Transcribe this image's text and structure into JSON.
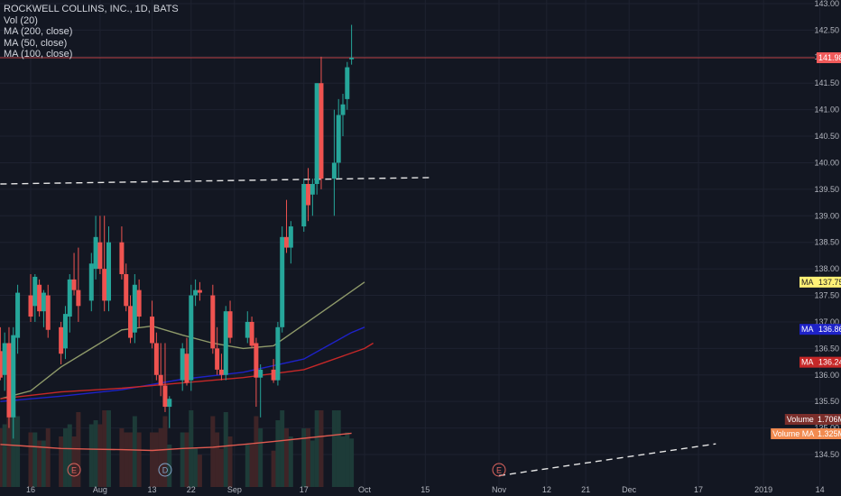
{
  "legend": {
    "symbol": "ROCKWELL COLLINS, INC., 1D, BATS",
    "vol": "Vol (20)",
    "ma200": "MA (200, close)",
    "ma50": "MA (50, close)",
    "ma100": "MA (100, close)"
  },
  "colors": {
    "background": "#131722",
    "grid": "#1e2230",
    "up": "#26a69a",
    "down": "#ef5350",
    "ma200": "#c62828",
    "ma50": "#1e22c8",
    "ma100": "#8f9a6a",
    "volume_ma": "#e05a50",
    "price_line": "#e64a4a"
  },
  "chart_data": {
    "type": "candlestick",
    "title": "ROCKWELL COLLINS, INC., 1D, BATS",
    "ylim": [
      134.1,
      143.0
    ],
    "y_ticks": [
      "134.50",
      "135.00",
      "135.50",
      "136.00",
      "136.50",
      "137.00",
      "137.50",
      "138.00",
      "138.50",
      "139.00",
      "139.50",
      "140.00",
      "140.50",
      "141.00",
      "141.50",
      "142.00",
      "142.50",
      "143.00"
    ],
    "x_ticks": [
      "16",
      "Aug",
      "13",
      "22",
      "Sep",
      "17",
      "Oct",
      "15",
      "Nov",
      "12",
      "21",
      "Dec",
      "17",
      "2019",
      "14"
    ],
    "x_tick_dates": [
      "2018-07-16",
      "2018-08-01",
      "2018-08-13",
      "2018-08-22",
      "2018-09-01",
      "2018-09-17",
      "2018-10-01",
      "2018-10-15",
      "2018-11-01",
      "2018-11-12",
      "2018-11-21",
      "2018-12-01",
      "2018-12-17",
      "2019-01-01",
      "2019-01-14"
    ],
    "candles": [
      {
        "date": "2018-07-09",
        "o": 136.45,
        "h": 136.9,
        "l": 135.9,
        "c": 135.95
      },
      {
        "date": "2018-07-10",
        "o": 136.0,
        "h": 136.8,
        "l": 135.7,
        "c": 136.6
      },
      {
        "date": "2018-07-11",
        "o": 136.6,
        "h": 136.9,
        "l": 135.0,
        "c": 135.2
      },
      {
        "date": "2018-07-12",
        "o": 135.2,
        "h": 136.9,
        "l": 134.8,
        "c": 136.75
      },
      {
        "date": "2018-07-13",
        "o": 136.7,
        "h": 137.7,
        "l": 136.4,
        "c": 137.55
      },
      {
        "date": "2018-07-16",
        "o": 137.5,
        "h": 137.9,
        "l": 137.0,
        "c": 137.1
      },
      {
        "date": "2018-07-17",
        "o": 137.3,
        "h": 137.9,
        "l": 137.0,
        "c": 137.85
      },
      {
        "date": "2018-07-18",
        "o": 137.7,
        "h": 137.8,
        "l": 137.1,
        "c": 137.2
      },
      {
        "date": "2018-07-19",
        "o": 137.2,
        "h": 137.6,
        "l": 136.9,
        "c": 137.55
      },
      {
        "date": "2018-07-20",
        "o": 137.5,
        "h": 137.7,
        "l": 136.7,
        "c": 136.85
      },
      {
        "date": "2018-07-23",
        "o": 136.9,
        "h": 137.0,
        "l": 136.2,
        "c": 136.4
      },
      {
        "date": "2018-07-24",
        "o": 136.5,
        "h": 137.3,
        "l": 136.3,
        "c": 137.15
      },
      {
        "date": "2018-07-25",
        "o": 137.1,
        "h": 137.9,
        "l": 136.8,
        "c": 137.8
      },
      {
        "date": "2018-07-26",
        "o": 137.8,
        "h": 138.3,
        "l": 137.5,
        "c": 137.6
      },
      {
        "date": "2018-07-27",
        "o": 137.6,
        "h": 138.4,
        "l": 137.0,
        "c": 137.3
      },
      {
        "date": "2018-07-30",
        "o": 137.4,
        "h": 138.3,
        "l": 137.2,
        "c": 138.1
      },
      {
        "date": "2018-07-31",
        "o": 138.0,
        "h": 139.0,
        "l": 137.8,
        "c": 138.6
      },
      {
        "date": "2018-08-01",
        "o": 138.5,
        "h": 139.0,
        "l": 137.9,
        "c": 138.0
      },
      {
        "date": "2018-08-02",
        "o": 138.0,
        "h": 139.0,
        "l": 137.2,
        "c": 137.4
      },
      {
        "date": "2018-08-03",
        "o": 137.4,
        "h": 138.8,
        "l": 137.2,
        "c": 138.5
      },
      {
        "date": "2018-08-06",
        "o": 138.5,
        "h": 138.8,
        "l": 137.8,
        "c": 137.9
      },
      {
        "date": "2018-08-07",
        "o": 137.9,
        "h": 138.1,
        "l": 137.2,
        "c": 137.3
      },
      {
        "date": "2018-08-08",
        "o": 137.3,
        "h": 137.5,
        "l": 136.6,
        "c": 136.7
      },
      {
        "date": "2018-08-09",
        "o": 136.8,
        "h": 137.9,
        "l": 136.6,
        "c": 137.7
      },
      {
        "date": "2018-08-10",
        "o": 137.6,
        "h": 137.8,
        "l": 136.9,
        "c": 137.1
      },
      {
        "date": "2018-08-13",
        "o": 137.1,
        "h": 137.4,
        "l": 136.5,
        "c": 136.6
      },
      {
        "date": "2018-08-14",
        "o": 136.6,
        "h": 136.8,
        "l": 135.9,
        "c": 136.0
      },
      {
        "date": "2018-08-15",
        "o": 136.0,
        "h": 136.6,
        "l": 135.6,
        "c": 135.8
      },
      {
        "date": "2018-08-16",
        "o": 135.8,
        "h": 136.6,
        "l": 135.3,
        "c": 135.4
      },
      {
        "date": "2018-08-17",
        "o": 135.4,
        "h": 135.6,
        "l": 135.0,
        "c": 135.55
      },
      {
        "date": "2018-08-20",
        "o": 135.9,
        "h": 136.6,
        "l": 135.7,
        "c": 136.5
      },
      {
        "date": "2018-08-21",
        "o": 136.4,
        "h": 136.7,
        "l": 135.8,
        "c": 135.85
      },
      {
        "date": "2018-08-22",
        "o": 135.9,
        "h": 137.7,
        "l": 135.7,
        "c": 137.5
      },
      {
        "date": "2018-08-23",
        "o": 137.5,
        "h": 137.8,
        "l": 137.3,
        "c": 137.6
      },
      {
        "date": "2018-08-24",
        "o": 137.6,
        "h": 137.75,
        "l": 137.4,
        "c": 137.55
      },
      {
        "date": "2018-08-27",
        "o": 137.5,
        "h": 137.7,
        "l": 136.4,
        "c": 136.5
      },
      {
        "date": "2018-08-28",
        "o": 136.5,
        "h": 136.9,
        "l": 136.0,
        "c": 136.1
      },
      {
        "date": "2018-08-29",
        "o": 136.1,
        "h": 136.4,
        "l": 135.9,
        "c": 136.0
      },
      {
        "date": "2018-08-30",
        "o": 136.0,
        "h": 137.3,
        "l": 135.9,
        "c": 137.2
      },
      {
        "date": "2018-08-31",
        "o": 137.2,
        "h": 137.4,
        "l": 136.6,
        "c": 136.7
      },
      {
        "date": "2018-09-04",
        "o": 136.7,
        "h": 137.2,
        "l": 136.6,
        "c": 137.0
      },
      {
        "date": "2018-09-05",
        "o": 137.0,
        "h": 137.1,
        "l": 136.5,
        "c": 136.55
      },
      {
        "date": "2018-09-06",
        "o": 136.6,
        "h": 136.7,
        "l": 135.4,
        "c": 135.95
      },
      {
        "date": "2018-09-07",
        "o": 135.95,
        "h": 136.2,
        "l": 135.2,
        "c": 136.1
      },
      {
        "date": "2018-09-10",
        "o": 136.1,
        "h": 136.3,
        "l": 135.85,
        "c": 135.9
      },
      {
        "date": "2018-09-11",
        "o": 135.9,
        "h": 137.0,
        "l": 135.8,
        "c": 136.9
      },
      {
        "date": "2018-09-12",
        "o": 136.9,
        "h": 138.8,
        "l": 136.8,
        "c": 138.6
      },
      {
        "date": "2018-09-13",
        "o": 138.6,
        "h": 139.3,
        "l": 138.3,
        "c": 138.4
      },
      {
        "date": "2018-09-14",
        "o": 138.4,
        "h": 138.9,
        "l": 138.1,
        "c": 138.8
      },
      {
        "date": "2018-09-17",
        "o": 138.8,
        "h": 139.7,
        "l": 138.7,
        "c": 139.6
      },
      {
        "date": "2018-09-18",
        "o": 139.6,
        "h": 139.9,
        "l": 138.9,
        "c": 139.2
      },
      {
        "date": "2018-09-19",
        "o": 139.4,
        "h": 139.7,
        "l": 139.0,
        "c": 139.6
      },
      {
        "date": "2018-09-20",
        "o": 139.6,
        "h": 141.5,
        "l": 139.4,
        "c": 141.5
      },
      {
        "date": "2018-09-21",
        "o": 141.5,
        "h": 142.0,
        "l": 139.5,
        "c": 139.7
      },
      {
        "date": "2018-09-24",
        "o": 139.7,
        "h": 141.0,
        "l": 139.0,
        "c": 140.0
      },
      {
        "date": "2018-09-25",
        "o": 140.0,
        "h": 141.2,
        "l": 139.7,
        "c": 140.9
      },
      {
        "date": "2018-09-26",
        "o": 140.9,
        "h": 141.3,
        "l": 140.5,
        "c": 141.1
      },
      {
        "date": "2018-09-27",
        "o": 141.2,
        "h": 141.9,
        "l": 141.0,
        "c": 141.8
      },
      {
        "date": "2018-09-28",
        "o": 141.95,
        "h": 142.6,
        "l": 141.85,
        "c": 141.98
      }
    ],
    "ma200": [
      [
        "2018-07-09",
        135.55
      ],
      [
        "2018-07-23",
        135.68
      ],
      [
        "2018-08-06",
        135.75
      ],
      [
        "2018-08-20",
        135.85
      ],
      [
        "2018-09-03",
        135.95
      ],
      [
        "2018-09-17",
        136.1
      ],
      [
        "2018-10-01",
        136.5
      ],
      [
        "2018-10-03",
        136.6
      ]
    ],
    "ma50": [
      [
        "2018-07-09",
        135.5
      ],
      [
        "2018-07-23",
        135.6
      ],
      [
        "2018-08-06",
        135.72
      ],
      [
        "2018-08-20",
        135.92
      ],
      [
        "2018-09-03",
        136.05
      ],
      [
        "2018-09-17",
        136.3
      ],
      [
        "2018-09-28",
        136.8
      ],
      [
        "2018-10-01",
        136.9
      ]
    ],
    "ma100": [
      [
        "2018-07-09",
        135.55
      ],
      [
        "2018-07-16",
        135.7
      ],
      [
        "2018-07-23",
        136.15
      ],
      [
        "2018-07-30",
        136.5
      ],
      [
        "2018-08-06",
        136.85
      ],
      [
        "2018-08-13",
        136.92
      ],
      [
        "2018-08-20",
        136.75
      ],
      [
        "2018-08-27",
        136.6
      ],
      [
        "2018-09-03",
        136.5
      ],
      [
        "2018-09-10",
        136.55
      ],
      [
        "2018-09-17",
        136.95
      ],
      [
        "2018-09-24",
        137.35
      ],
      [
        "2018-10-01",
        137.75
      ]
    ],
    "volume_ma": [
      [
        "2018-07-09",
        1.05
      ],
      [
        "2018-07-16",
        1.0
      ],
      [
        "2018-07-23",
        0.95
      ],
      [
        "2018-07-30",
        0.93
      ],
      [
        "2018-08-06",
        0.92
      ],
      [
        "2018-08-13",
        0.9
      ],
      [
        "2018-08-20",
        0.95
      ],
      [
        "2018-08-27",
        0.98
      ],
      [
        "2018-09-03",
        1.05
      ],
      [
        "2018-09-10",
        1.12
      ],
      [
        "2018-09-17",
        1.2
      ],
      [
        "2018-09-24",
        1.28
      ],
      [
        "2018-09-28",
        1.325
      ]
    ],
    "resistance_line": [
      [
        "2018-07-09",
        139.6
      ],
      [
        "2018-10-16",
        139.72
      ]
    ],
    "trend_line": [
      [
        "2018-11-01",
        134.1
      ],
      [
        "2018-12-21",
        134.7
      ]
    ],
    "earnings_markers": [
      {
        "date": "2018-07-26",
        "label": "E"
      },
      {
        "date": "2018-11-01",
        "label": "E"
      }
    ],
    "dividend_markers": [
      {
        "date": "2018-08-16",
        "label": "D"
      }
    ],
    "price_tags": [
      {
        "label": "141.98",
        "value": 141.98
      },
      {
        "label": "137.75",
        "value": 137.75,
        "ma": "MA"
      },
      {
        "label": "136.86",
        "value": 136.86,
        "ma": "MA"
      },
      {
        "label": "136.24",
        "value": 136.24,
        "ma": "MA"
      }
    ],
    "volume_tags": [
      {
        "label": "Volume",
        "value": "1.706M"
      },
      {
        "label": "Volume MA",
        "value": "1.325M"
      }
    ],
    "y_axis_max_label": "143.00",
    "y_axis_min_label": "134.50"
  }
}
